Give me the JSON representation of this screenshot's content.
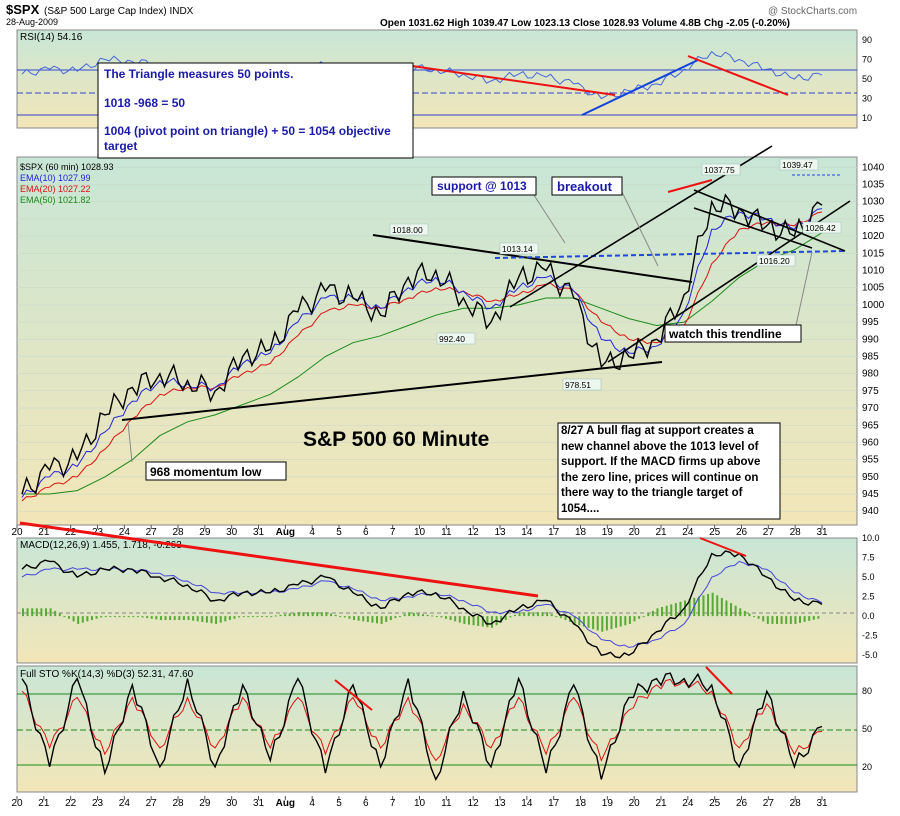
{
  "header": {
    "symbol": "$SPX",
    "name": "(S&P 500 Large Cap Index) INDX",
    "date": "28-Aug-2009",
    "watermark": "@ StockCharts.com",
    "quote": "Open 1031.62  High 1039.47  Low 1023.13  Close 1028.93  Volume 4.8B  Chg -2.05 (-0.20%)"
  },
  "colors": {
    "bg_gradient_top": "#c8e6d6",
    "bg_gradient_bottom": "#f3e6b8",
    "price_line": "#000000",
    "ema10": "#2222dd",
    "ema20": "#dd1111",
    "ema50": "#1a8a1a",
    "annotation_text": "#1a1aaa",
    "trend_red": "#ee1111",
    "trend_blue": "#1144dd",
    "support_dash": "#2244ee",
    "macd_hist": "#55aa33"
  },
  "rsi_panel": {
    "title": "RSI(14) 54.16",
    "ticks": [
      "90",
      "70",
      "50",
      "30",
      "10"
    ]
  },
  "price_panel": {
    "legend": [
      {
        "text": "$SPX (60 min) 1028.93",
        "color": "#000000"
      },
      {
        "text": "EMA(10) 1027.99",
        "color": "#2222dd"
      },
      {
        "text": "EMA(20) 1027.22",
        "color": "#dd1111"
      },
      {
        "text": "EMA(50) 1021.82",
        "color": "#1a8a1a"
      }
    ],
    "ticks": [
      "1040",
      "1035",
      "1030",
      "1025",
      "1020",
      "1015",
      "1010",
      "1005",
      "1000",
      "995",
      "990",
      "985",
      "980",
      "975",
      "970",
      "965",
      "960",
      "955",
      "950",
      "945",
      "940"
    ],
    "price_labels": [
      "1018.00",
      "1013.14",
      "992.40",
      "978.51",
      "1037.75",
      "1039.47",
      "1016.20",
      "1026.42"
    ]
  },
  "annotations": {
    "triangle_box_lines": [
      "The Triangle measures 50 points.",
      "1018 -968 = 50",
      "1004 (pivot point on triangle) + 50 = 1054 objective target"
    ],
    "support": "support @ 1013",
    "breakout": "breakout",
    "trendline": "watch this trendline",
    "momentum_low": "968 momentum low",
    "big_title": "S&P 500 60 Minute",
    "note": "8/27 A bull flag at support creates a new channel above the 1013 level of support.   If the MACD firms up above the zero line, prices will continue on there way to the triangle target of 1054...."
  },
  "macd_panel": {
    "title": "MACD(12,26,9) 1.455, 1.718, -0.263",
    "ticks": [
      "10.0",
      "7.5",
      "5.0",
      "2.5",
      "0.0",
      "-2.5",
      "-5.0"
    ]
  },
  "sto_panel": {
    "title": "Full STO %K(14,3) %D(3) 52.31, 47.60",
    "ticks": [
      "80",
      "50",
      "20"
    ]
  },
  "x_axis_labels": [
    "20",
    "21",
    "22",
    "23",
    "24",
    "27",
    "28",
    "29",
    "30",
    "31",
    "Aug",
    "4",
    "5",
    "6",
    "7",
    "10",
    "11",
    "12",
    "13",
    "14",
    "17",
    "18",
    "19",
    "20",
    "21",
    "24",
    "25",
    "26",
    "27",
    "28",
    "31"
  ],
  "chart_data": {
    "type": "line",
    "title": "$SPX (60 min)",
    "x": [
      "Jul 20",
      "Jul 21",
      "Jul 22",
      "Jul 23",
      "Jul 24",
      "Jul 27",
      "Jul 28",
      "Jul 29",
      "Jul 30",
      "Jul 31",
      "Aug 3",
      "Aug 4",
      "Aug 5",
      "Aug 6",
      "Aug 7",
      "Aug 10",
      "Aug 11",
      "Aug 12",
      "Aug 13",
      "Aug 14",
      "Aug 17",
      "Aug 18",
      "Aug 19",
      "Aug 20",
      "Aug 21",
      "Aug 24",
      "Aug 25",
      "Aug 26",
      "Aug 27",
      "Aug 28"
    ],
    "series": [
      {
        "name": "$SPX (60 min)",
        "values": [
          945,
          952,
          955,
          968,
          976,
          980,
          978,
          975,
          985,
          987,
          998,
          1004,
          1002,
          997,
          1008,
          1010,
          1002,
          995,
          1008,
          1010,
          1002,
          982,
          985,
          990,
          1003,
          1030,
          1028,
          1023,
          1020,
          1029
        ]
      },
      {
        "name": "EMA(10)",
        "values": [
          944,
          950,
          953,
          963,
          972,
          978,
          977,
          976,
          983,
          986,
          995,
          1002,
          1002,
          999,
          1005,
          1008,
          1004,
          999,
          1005,
          1008,
          1004,
          990,
          986,
          988,
          998,
          1022,
          1027,
          1025,
          1022,
          1028
        ]
      },
      {
        "name": "EMA(20)",
        "values": [
          943,
          947,
          950,
          958,
          967,
          974,
          976,
          976,
          980,
          983,
          991,
          998,
          1000,
          999,
          1002,
          1005,
          1004,
          1001,
          1003,
          1006,
          1004,
          995,
          990,
          989,
          994,
          1012,
          1022,
          1024,
          1023,
          1027
        ]
      },
      {
        "name": "EMA(50)",
        "values": [
          945,
          945,
          946,
          950,
          955,
          962,
          966,
          968,
          971,
          974,
          979,
          985,
          989,
          991,
          994,
          997,
          999,
          999,
          1000,
          1002,
          1002,
          999,
          996,
          994,
          995,
          1001,
          1008,
          1013,
          1016,
          1021
        ]
      }
    ],
    "ylim": [
      936,
      1043
    ],
    "rsi": {
      "ylim": [
        0,
        100
      ],
      "value": 54.16
    },
    "macd": {
      "values": [
        1.455,
        1.718,
        -0.263
      ],
      "ylim": [
        -6,
        10
      ]
    },
    "stochastic": {
      "values": [
        52.31,
        47.6
      ],
      "ylim": [
        0,
        100
      ]
    }
  }
}
